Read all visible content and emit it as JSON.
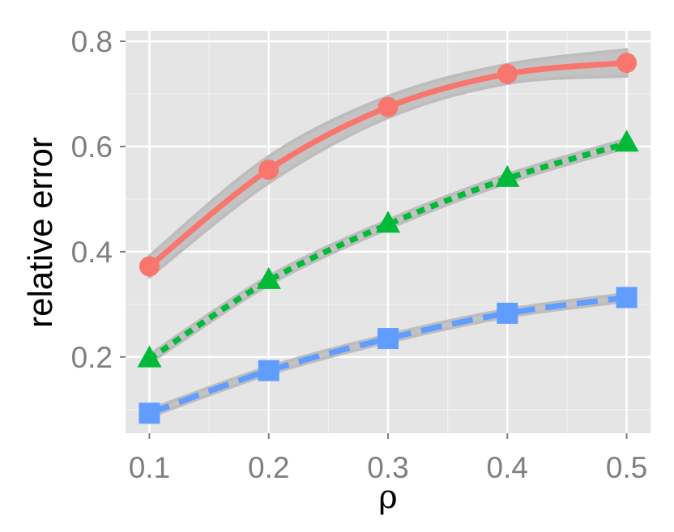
{
  "chart_data": {
    "type": "line",
    "xlabel": "ρ",
    "ylabel": "relative error",
    "x": [
      0.1,
      0.2,
      0.3,
      0.4,
      0.5
    ],
    "xlim": [
      0.08,
      0.52
    ],
    "ylim": [
      0.055,
      0.82
    ],
    "x_ticks": [
      "0.1",
      "0.2",
      "0.3",
      "0.4",
      "0.5"
    ],
    "y_ticks": [
      "0.2",
      "0.4",
      "0.6",
      "0.8"
    ],
    "grid": true,
    "legend": "none",
    "background_color": "#e5e5e5",
    "series": [
      {
        "values": [
          0.372,
          0.556,
          0.675,
          0.738,
          0.759
        ],
        "color": "#f8766d",
        "marker": "circle",
        "line": "solid",
        "ribbon_halfwidth": [
          0.02,
          0.025,
          0.02,
          0.018,
          0.025
        ]
      },
      {
        "values": [
          0.196,
          0.345,
          0.452,
          0.539,
          0.606
        ],
        "color": "#00ba38",
        "marker": "triangle",
        "line": "dotted",
        "ribbon_halfwidth": [
          0.008,
          0.008,
          0.008,
          0.008,
          0.008
        ]
      },
      {
        "values": [
          0.093,
          0.174,
          0.235,
          0.283,
          0.313
        ],
        "color": "#619cff",
        "marker": "square",
        "line": "dashed",
        "ribbon_halfwidth": [
          0.007,
          0.007,
          0.007,
          0.007,
          0.007
        ]
      }
    ]
  }
}
